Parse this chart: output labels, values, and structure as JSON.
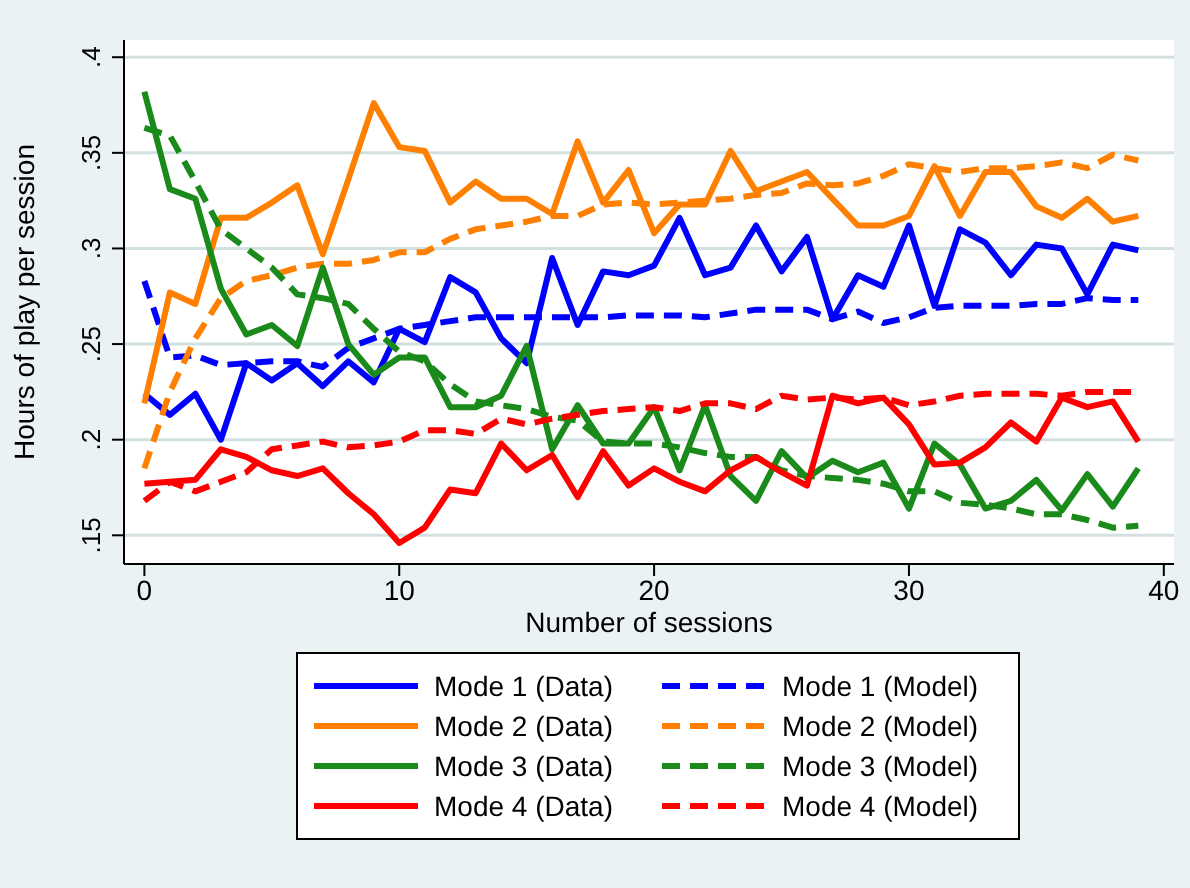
{
  "chart_data": {
    "type": "line",
    "xlabel": "Number of sessions",
    "ylabel": "Hours of play per session",
    "x": [
      0,
      1,
      2,
      3,
      4,
      5,
      6,
      7,
      8,
      9,
      10,
      11,
      12,
      13,
      14,
      15,
      16,
      17,
      18,
      19,
      20,
      21,
      22,
      23,
      24,
      25,
      26,
      27,
      28,
      29,
      30,
      31,
      32,
      33,
      34,
      35,
      36,
      37,
      38,
      39
    ],
    "xlim": [
      -0.8,
      40.4
    ],
    "xticks": [
      0,
      10,
      20,
      30,
      40
    ],
    "ylim": [
      0.135,
      0.409
    ],
    "yticks": [
      {
        "value": 0.15,
        "label": ".15"
      },
      {
        "value": 0.2,
        "label": ".2"
      },
      {
        "value": 0.25,
        "label": ".25"
      },
      {
        "value": 0.3,
        "label": ".3"
      },
      {
        "value": 0.35,
        "label": ".35"
      },
      {
        "value": 0.4,
        "label": ".4"
      }
    ],
    "grid": "y",
    "legend": "bottom",
    "marker": "none",
    "series": [
      {
        "name": "Mode 1 (Data)",
        "color": "#0000ff",
        "line_style": "solid",
        "values": [
          0.224,
          0.213,
          0.224,
          0.2,
          0.24,
          0.231,
          0.24,
          0.228,
          0.241,
          0.23,
          0.258,
          0.251,
          0.285,
          0.277,
          0.253,
          0.24,
          0.295,
          0.26,
          0.288,
          0.286,
          0.291,
          0.316,
          0.286,
          0.29,
          0.312,
          0.288,
          0.306,
          0.263,
          0.286,
          0.28,
          0.312,
          0.27,
          0.31,
          0.303,
          0.286,
          0.302,
          0.3,
          0.276,
          0.302,
          0.299
        ]
      },
      {
        "name": "Mode 1 (Model)",
        "color": "#0000ff",
        "line_style": "dashed",
        "values": [
          0.283,
          0.243,
          0.244,
          0.239,
          0.24,
          0.241,
          0.241,
          0.238,
          0.248,
          0.253,
          0.258,
          0.26,
          0.262,
          0.264,
          0.264,
          0.264,
          0.264,
          0.264,
          0.264,
          0.265,
          0.265,
          0.265,
          0.264,
          0.266,
          0.268,
          0.268,
          0.268,
          0.263,
          0.267,
          0.261,
          0.264,
          0.269,
          0.27,
          0.27,
          0.27,
          0.271,
          0.271,
          0.274,
          0.273,
          0.273
        ]
      },
      {
        "name": "Mode 2 (Data)",
        "color": "#ff8000",
        "line_style": "solid",
        "values": [
          0.219,
          0.277,
          0.271,
          0.316,
          0.316,
          0.324,
          0.333,
          0.297,
          0.336,
          0.376,
          0.353,
          0.351,
          0.324,
          0.335,
          0.326,
          0.326,
          0.318,
          0.356,
          0.324,
          0.341,
          0.308,
          0.323,
          0.323,
          0.351,
          0.33,
          0.335,
          0.34,
          0.326,
          0.312,
          0.312,
          0.317,
          0.343,
          0.317,
          0.34,
          0.34,
          0.322,
          0.316,
          0.326,
          0.314,
          0.317
        ]
      },
      {
        "name": "Mode 2 (Model)",
        "color": "#ff8000",
        "line_style": "dashed",
        "values": [
          0.185,
          0.225,
          0.253,
          0.274,
          0.283,
          0.286,
          0.29,
          0.292,
          0.292,
          0.294,
          0.298,
          0.298,
          0.305,
          0.31,
          0.312,
          0.314,
          0.317,
          0.317,
          0.323,
          0.324,
          0.323,
          0.324,
          0.325,
          0.326,
          0.328,
          0.329,
          0.334,
          0.333,
          0.334,
          0.338,
          0.344,
          0.342,
          0.34,
          0.342,
          0.342,
          0.343,
          0.345,
          0.342,
          0.349,
          0.346
        ]
      },
      {
        "name": "Mode 3 (Data)",
        "color": "#1a8a1a",
        "line_style": "solid",
        "values": [
          0.382,
          0.331,
          0.326,
          0.279,
          0.255,
          0.26,
          0.249,
          0.29,
          0.25,
          0.234,
          0.243,
          0.243,
          0.217,
          0.217,
          0.223,
          0.249,
          0.195,
          0.218,
          0.198,
          0.198,
          0.217,
          0.184,
          0.218,
          0.181,
          0.168,
          0.194,
          0.18,
          0.189,
          0.183,
          0.188,
          0.164,
          0.198,
          0.187,
          0.164,
          0.168,
          0.179,
          0.163,
          0.182,
          0.165,
          0.185
        ]
      },
      {
        "name": "Mode 3 (Model)",
        "color": "#1a8a1a",
        "line_style": "dashed",
        "values": [
          0.363,
          0.359,
          0.335,
          0.31,
          0.3,
          0.29,
          0.276,
          0.274,
          0.271,
          0.258,
          0.246,
          0.241,
          0.229,
          0.22,
          0.218,
          0.216,
          0.212,
          0.21,
          0.199,
          0.198,
          0.198,
          0.196,
          0.193,
          0.191,
          0.191,
          0.184,
          0.181,
          0.18,
          0.179,
          0.177,
          0.173,
          0.173,
          0.167,
          0.166,
          0.164,
          0.161,
          0.161,
          0.158,
          0.154,
          0.155
        ]
      },
      {
        "name": "Mode 4 (Data)",
        "color": "#ff0000",
        "line_style": "solid",
        "values": [
          0.177,
          0.178,
          0.179,
          0.195,
          0.191,
          0.184,
          0.181,
          0.185,
          0.172,
          0.161,
          0.146,
          0.154,
          0.174,
          0.172,
          0.198,
          0.184,
          0.192,
          0.17,
          0.194,
          0.176,
          0.185,
          0.178,
          0.173,
          0.184,
          0.191,
          0.183,
          0.176,
          0.223,
          0.219,
          0.222,
          0.208,
          0.187,
          0.188,
          0.196,
          0.209,
          0.199,
          0.222,
          0.217,
          0.22,
          0.199
        ]
      },
      {
        "name": "Mode 4 (Model)",
        "color": "#ff0000",
        "line_style": "dashed",
        "values": [
          0.168,
          0.178,
          0.173,
          0.178,
          0.183,
          0.195,
          0.197,
          0.199,
          0.196,
          0.197,
          0.199,
          0.205,
          0.205,
          0.203,
          0.211,
          0.208,
          0.211,
          0.213,
          0.215,
          0.216,
          0.217,
          0.215,
          0.219,
          0.219,
          0.216,
          0.223,
          0.221,
          0.222,
          0.221,
          0.222,
          0.218,
          0.22,
          0.223,
          0.224,
          0.224,
          0.224,
          0.223,
          0.225,
          0.225,
          0.225
        ]
      }
    ]
  }
}
